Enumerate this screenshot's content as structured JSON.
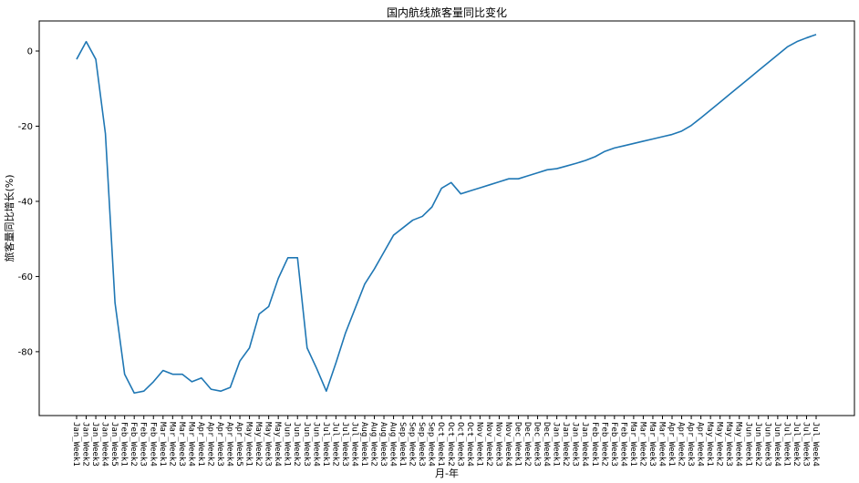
{
  "chart_data": {
    "type": "line",
    "title": "国内航线旅客量同比变化",
    "xlabel": "月-年",
    "ylabel": "旅客量同比增长(%)",
    "ylim": [
      -97,
      8
    ],
    "yticks": [
      0,
      -20,
      -40,
      -60,
      -80
    ],
    "grid": false,
    "line_color": "#1f77b4",
    "x": [
      "Jan_Week1",
      "Jan_Week2",
      "Jan_Week3",
      "Jan_Week4",
      "Jan_Week5",
      "Feb_Week1",
      "Feb_Week2",
      "Feb_Week3",
      "Feb_Week4",
      "Mar_Week1",
      "Mar_Week2",
      "Mar_Week3",
      "Mar_Week4",
      "Apr_Week1",
      "Apr_Week2",
      "Apr_Week3",
      "Apr_Week4",
      "Apr_Week5",
      "May_Week1",
      "May_Week2",
      "May_Week3",
      "May_Week4",
      "Jun_Week1",
      "Jun_Week2",
      "Jun_Week3",
      "Jun_Week4",
      "Jul_Week1",
      "Jul_Week2",
      "Jul_Week3",
      "Jul_Week4",
      "Aug_Week1",
      "Aug_Week2",
      "Aug_Week3",
      "Aug_Week4",
      "Sep_Week1",
      "Sep_Week2",
      "Sep_Week3",
      "Sep_Week4",
      "Oct_Week1",
      "Oct_Week2",
      "Oct_Week3",
      "Oct_Week4",
      "Nov_Week1",
      "Nov_Week2",
      "Nov_Week3",
      "Nov_Week4",
      "Dec_Week1",
      "Dec_Week2",
      "Dec_Week3",
      "Dec_Week4",
      "Jan_Week1",
      "Jan_Week2",
      "Jan_Week3",
      "Jan_Week4",
      "Feb_Week1",
      "Feb_Week2",
      "Feb_Week3",
      "Feb_Week4",
      "Mar_Week1",
      "Mar_Week2",
      "Mar_Week3",
      "Mar_Week4",
      "Apr_Week1",
      "Apr_Week2",
      "Apr_Week3",
      "Apr_Week4",
      "May_Week1",
      "May_Week2",
      "May_Week3",
      "May_Week4",
      "Jun_Week1",
      "Jun_Week2",
      "Jun_Week3",
      "Jun_Week4",
      "Jul_Week1",
      "Jul_Week2",
      "Jul_Week3",
      "Jul_Week4"
    ],
    "series": [
      {
        "values": [
          -2.2,
          2.5,
          -2.2,
          -22,
          -67,
          -86,
          -91,
          -90.5,
          -88,
          -85,
          -86,
          -86,
          -88,
          -87,
          -90,
          -90.5,
          -89.5,
          -82.5,
          -79,
          -70,
          -68,
          -60.5,
          -55,
          -55,
          -79,
          -84.5,
          -90.5,
          -83,
          -75,
          -68.5,
          -62,
          -58,
          -53.5,
          -49,
          -47,
          -45,
          -44,
          -41.5,
          -36.5,
          -35,
          -38,
          -37.2,
          -36.4,
          -35.6,
          -34.8,
          -34,
          -34,
          -33.2,
          -32.4,
          -31.6,
          -31.3,
          -30.6,
          -29.9,
          -29.1,
          -28.1,
          -26.7,
          -25.8,
          -25.2,
          -24.6,
          -24,
          -23.4,
          -22.8,
          -22.2,
          -21.3,
          -19.8,
          -17.8,
          -15.7,
          -13.6,
          -11.5,
          -9.4,
          -7.3,
          -5.2,
          -3.1,
          -1,
          1.1,
          2.5,
          3.5,
          4.4
        ]
      }
    ]
  }
}
